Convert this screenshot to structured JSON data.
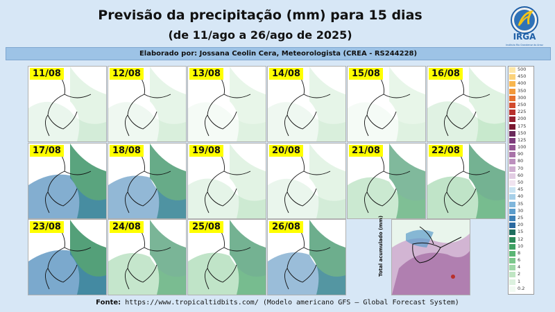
{
  "header": {
    "title": "Previsão da precipitação (mm) para 15 dias",
    "subtitle": "(de 11/ago a 26/ago de 2025)",
    "author": "Elaborado por: Jossana Ceolin Cera, Meteorologista (CREA - RS244228)",
    "logo_text": "IRGA",
    "logo_caption": "Instituto Rio Grandense do Arroz"
  },
  "panels": [
    {
      "date": "11/08",
      "intensity": 0.2
    },
    {
      "date": "12/08",
      "intensity": 0.15
    },
    {
      "date": "13/08",
      "intensity": 0.1
    },
    {
      "date": "14/08",
      "intensity": 0.15
    },
    {
      "date": "15/08",
      "intensity": 0.1
    },
    {
      "date": "16/08",
      "intensity": 0.3
    },
    {
      "date": "17/08",
      "intensity": 0.8
    },
    {
      "date": "18/08",
      "intensity": 0.7
    },
    {
      "date": "19/08",
      "intensity": 0.25
    },
    {
      "date": "20/08",
      "intensity": 0.2
    },
    {
      "date": "21/08",
      "intensity": 0.5
    },
    {
      "date": "22/08",
      "intensity": 0.6
    },
    {
      "date": "23/08",
      "intensity": 0.85
    },
    {
      "date": "24/08",
      "intensity": 0.55
    },
    {
      "date": "25/08",
      "intensity": 0.6
    },
    {
      "date": "26/08",
      "intensity": 0.65
    }
  ],
  "total_label": "Total acumulado (mm)",
  "colorbar": {
    "levels": [
      "500",
      "450",
      "400",
      "350",
      "300",
      "250",
      "225",
      "200",
      "175",
      "150",
      "125",
      "100",
      "90",
      "80",
      "70",
      "60",
      "50",
      "45",
      "40",
      "35",
      "30",
      "25",
      "20",
      "15",
      "12",
      "10",
      "8",
      "6",
      "4",
      "2",
      "1",
      "0.2"
    ],
    "colors": [
      "#fde7a8",
      "#fbd27a",
      "#f8b64e",
      "#f2983a",
      "#e6702e",
      "#d24a2c",
      "#b8302c",
      "#962030",
      "#7a1830",
      "#6b2a5c",
      "#7e3c7c",
      "#935592",
      "#a872a8",
      "#bc8fbd",
      "#cfaed0",
      "#e2cde3",
      "#f0e4f0",
      "#c9e3f2",
      "#a6cfe8",
      "#7fb6db",
      "#5b9ccb",
      "#3d80b6",
      "#2b6aa0",
      "#1f6e5f",
      "#2c8a5a",
      "#3fa163",
      "#5bb575",
      "#7cc78c",
      "#9ed7a7",
      "#bfe5c3",
      "#dcf1df",
      "#f1faf2"
    ]
  },
  "footer": {
    "label": "Fonte:",
    "source": "https://www.tropicaltidbits.com/ (Modelo americano GFS – Global Forecast System)"
  }
}
